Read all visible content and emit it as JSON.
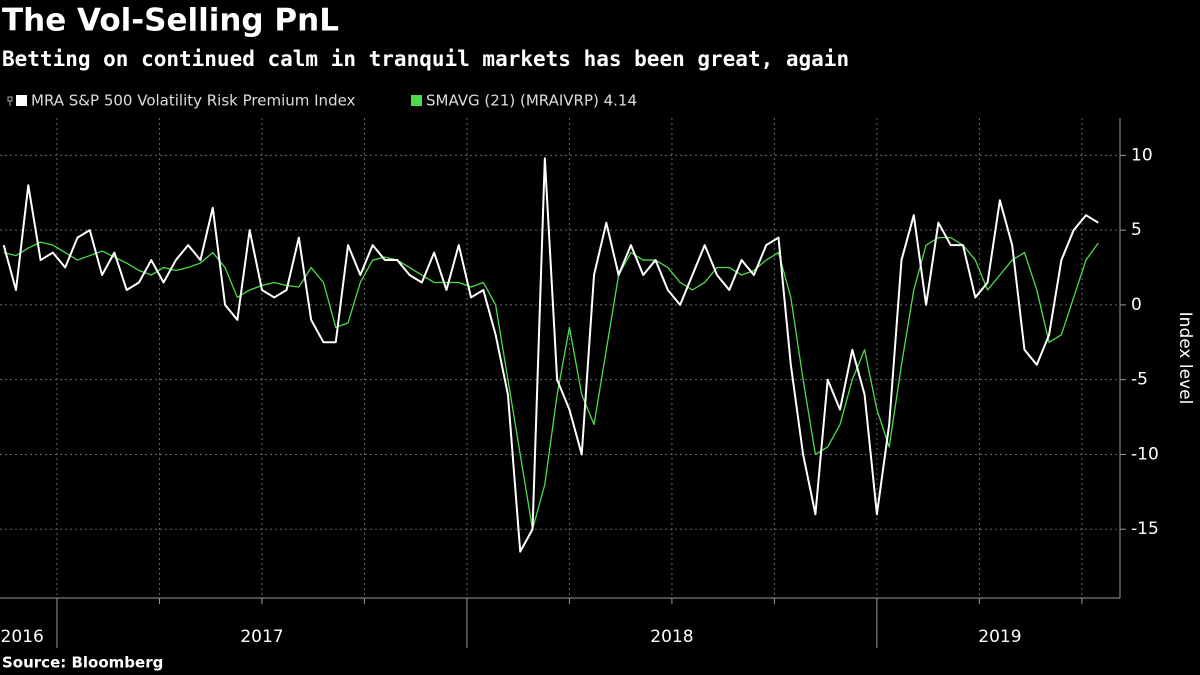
{
  "chart_data": {
    "type": "line",
    "title": "The Vol-Selling PnL",
    "subtitle": "Betting on continued calm in tranquil markets has been great, again",
    "y_axis_label": "Index level",
    "source": "Source: Bloomberg",
    "x": [
      2016.87,
      2016.9,
      2016.93,
      2016.96,
      2016.99,
      2017.02,
      2017.05,
      2017.08,
      2017.11,
      2017.14,
      2017.17,
      2017.2,
      2017.23,
      2017.26,
      2017.29,
      2017.32,
      2017.35,
      2017.38,
      2017.41,
      2017.44,
      2017.47,
      2017.5,
      2017.53,
      2017.56,
      2017.59,
      2017.62,
      2017.65,
      2017.68,
      2017.71,
      2017.74,
      2017.77,
      2017.8,
      2017.83,
      2017.86,
      2017.89,
      2017.92,
      2017.95,
      2017.98,
      2018.01,
      2018.04,
      2018.07,
      2018.1,
      2018.13,
      2018.16,
      2018.19,
      2018.22,
      2018.25,
      2018.28,
      2018.31,
      2018.34,
      2018.37,
      2018.4,
      2018.43,
      2018.46,
      2018.49,
      2018.52,
      2018.55,
      2018.58,
      2018.61,
      2018.64,
      2018.67,
      2018.7,
      2018.73,
      2018.76,
      2018.79,
      2018.82,
      2018.85,
      2018.88,
      2018.91,
      2018.94,
      2018.97,
      2019.0,
      2019.03,
      2019.06,
      2019.09,
      2019.12,
      2019.15,
      2019.18,
      2019.21,
      2019.24,
      2019.27,
      2019.3,
      2019.33,
      2019.36,
      2019.39,
      2019.42,
      2019.45,
      2019.48,
      2019.51,
      2019.54
    ],
    "series": [
      {
        "name": "MRA S&P 500 Volatility Risk Premium Index",
        "color": "#ffffff",
        "values": [
          4,
          1,
          8,
          3,
          3.5,
          2.5,
          4.5,
          5,
          2,
          3.5,
          1,
          1.5,
          3,
          1.5,
          3,
          4,
          3,
          6.5,
          0,
          -1,
          5,
          1,
          0.5,
          1,
          4.5,
          -1,
          -2.5,
          -2.5,
          4,
          2,
          4,
          3,
          3,
          2,
          1.5,
          3.5,
          1,
          4,
          0.5,
          1,
          -2,
          -6,
          -16.5,
          -15,
          9.8,
          -5,
          -7,
          -10,
          2,
          5.5,
          2,
          4,
          2,
          3,
          1,
          0,
          2,
          4,
          2,
          1,
          3,
          2,
          4,
          4.5,
          -4,
          -10,
          -14,
          -5,
          -7,
          -3,
          -6,
          -14,
          -8,
          3,
          6,
          0,
          5.5,
          4,
          4,
          0.5,
          1.5,
          7,
          4,
          -3,
          -4,
          -2,
          3,
          5,
          6,
          5.5
        ]
      },
      {
        "name": "SMAVG (21) (MRAIVRP) 4.14",
        "color": "#4cdc4c",
        "values": [
          3.5,
          3.3,
          3.8,
          4.2,
          4.0,
          3.5,
          3.0,
          3.3,
          3.6,
          3.2,
          2.8,
          2.3,
          2.0,
          2.5,
          2.3,
          2.5,
          2.8,
          3.5,
          2.5,
          0.5,
          1.0,
          1.3,
          1.5,
          1.3,
          1.2,
          2.5,
          1.5,
          -1.5,
          -1.2,
          1.5,
          3.0,
          3.2,
          3.0,
          2.5,
          2.0,
          1.5,
          1.5,
          1.5,
          1.2,
          1.5,
          0,
          -5,
          -10,
          -15,
          -12,
          -6,
          -1.5,
          -6,
          -8,
          -3,
          2,
          3.5,
          3,
          3,
          2.5,
          1.5,
          1,
          1.5,
          2.5,
          2.5,
          2,
          2.3,
          3,
          3.5,
          0.5,
          -5,
          -10,
          -9.5,
          -8,
          -5,
          -3,
          -7,
          -9.5,
          -4,
          1,
          4,
          4.5,
          4.5,
          4,
          3,
          1,
          2,
          3,
          3.5,
          1,
          -2.5,
          -2,
          0.5,
          3,
          4.14
        ]
      }
    ],
    "xlim": [
      2016.861,
      2019.593
    ],
    "xticks": [
      {
        "value": 2016.915,
        "label": "2016"
      },
      {
        "value": 2017.5,
        "label": "2017"
      },
      {
        "value": 2018.5,
        "label": "2018"
      },
      {
        "value": 2019.3,
        "label": "2019"
      }
    ],
    "x_gridlines": [
      2017,
      2017.25,
      2017.5,
      2017.75,
      2018,
      2018.25,
      2018.5,
      2018.75,
      2019,
      2019.25,
      2019.5
    ],
    "ylim": [
      -19.6,
      12.5
    ],
    "yticks": [
      -15,
      -10,
      -5,
      0,
      5,
      10
    ],
    "grid": true
  }
}
